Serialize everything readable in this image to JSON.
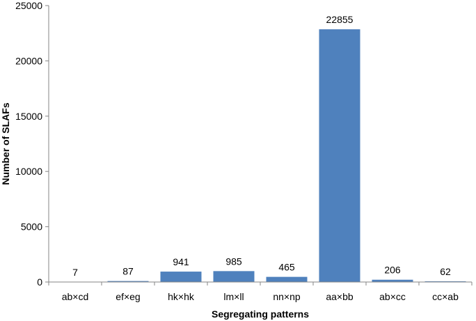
{
  "chart_data": {
    "type": "bar",
    "categories": [
      "ab×cd",
      "ef×eg",
      "hk×hk",
      "lm×ll",
      "nn×np",
      "aa×bb",
      "ab×cc",
      "cc×ab"
    ],
    "values": [
      7,
      87,
      941,
      985,
      465,
      22855,
      206,
      62
    ],
    "data_labels": [
      "7",
      "87",
      "941",
      "985",
      "465",
      "22855",
      "206",
      "62"
    ],
    "xlabel": "Segregating patterns",
    "ylabel": "Number of SLAFs",
    "ylim": [
      0,
      25000
    ],
    "yticks": [
      "0",
      "5000",
      "10000",
      "15000",
      "20000",
      "25000"
    ],
    "grid": false,
    "legend": "none",
    "bar_color": "#4f81bd",
    "axis_color": "#868686"
  }
}
